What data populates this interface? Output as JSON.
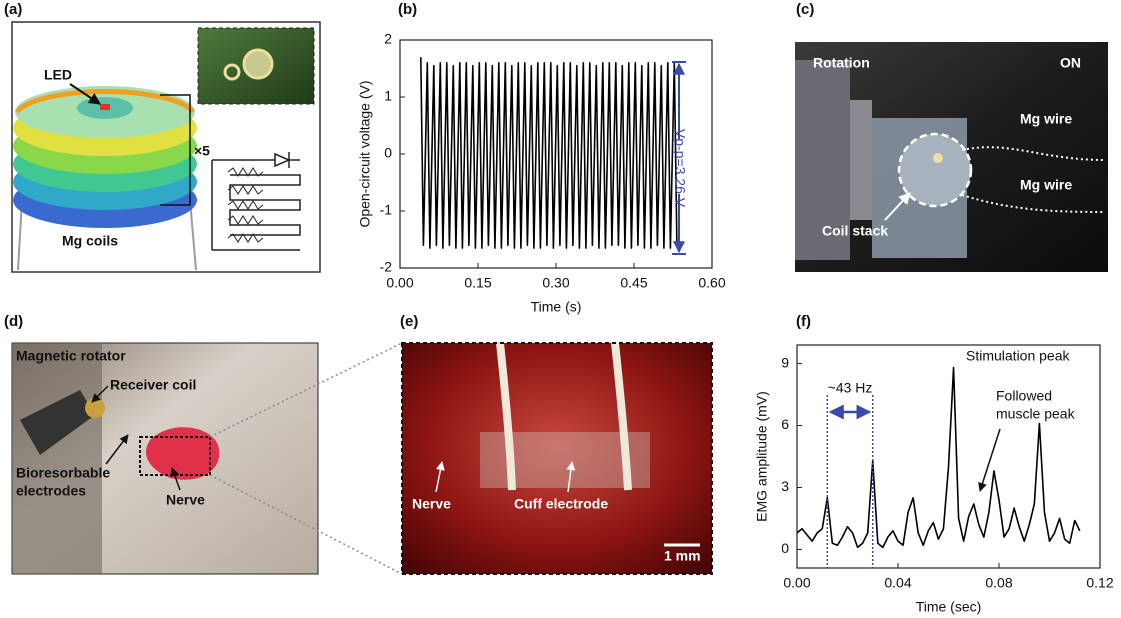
{
  "panels": {
    "labels": [
      "(a)",
      "(b)",
      "(c)",
      "(d)",
      "(e)",
      "(f)"
    ],
    "a": {
      "texts": [
        "LED",
        "×5",
        "Mg coils"
      ]
    },
    "c": {
      "texts": [
        "Rotation",
        "ON",
        "Mg wire",
        "Mg wire",
        "Coil stack"
      ]
    },
    "d": {
      "texts": [
        "Magnetic rotator",
        "Receiver coil",
        "Bioresorbable",
        "electrodes",
        "Nerve"
      ]
    },
    "e": {
      "texts": [
        "Nerve",
        "Cuff electrode",
        "1 mm"
      ]
    }
  },
  "chart_data": [
    {
      "type": "line",
      "xlabel": "Time (s)",
      "ylabel": "Open-circuit voltage (V)",
      "color": "#000000",
      "annotation": "Vp-p=3.26 V",
      "annotation_color": "#3a4aa8",
      "xlim": [
        0,
        0.6
      ],
      "ylim": [
        -2,
        2
      ],
      "xticks": [
        {
          "value": 0,
          "label": "0.00"
        },
        {
          "value": 0.15,
          "label": "0.15"
        },
        {
          "value": 0.3,
          "label": "0.30"
        },
        {
          "value": 0.45,
          "label": "0.45"
        },
        {
          "value": 0.6,
          "label": "0.60"
        }
      ],
      "yticks": [
        -2,
        -1,
        0,
        1,
        2
      ],
      "x": [
        0.04,
        0.045,
        0.0525,
        0.0575,
        0.065,
        0.07,
        0.0775,
        0.0825,
        0.09,
        0.095,
        0.1025,
        0.1075,
        0.115,
        0.12,
        0.1275,
        0.1325,
        0.14,
        0.145,
        0.1525,
        0.1575,
        0.165,
        0.17,
        0.1775,
        0.1825,
        0.19,
        0.195,
        0.2025,
        0.2075,
        0.215,
        0.22,
        0.2275,
        0.2325,
        0.24,
        0.245,
        0.2525,
        0.2575,
        0.265,
        0.27,
        0.2775,
        0.2825,
        0.29,
        0.295,
        0.3025,
        0.3075,
        0.315,
        0.32,
        0.3275,
        0.3325,
        0.34,
        0.345,
        0.3525,
        0.3575,
        0.365,
        0.37,
        0.3775,
        0.3825,
        0.39,
        0.395,
        0.4025,
        0.4075,
        0.415,
        0.42,
        0.4275,
        0.4325,
        0.44,
        0.445,
        0.4525,
        0.4575,
        0.465,
        0.47,
        0.4775,
        0.4825,
        0.49,
        0.495,
        0.5025,
        0.5075,
        0.515,
        0.52,
        0.5275,
        0.5325
      ],
      "values": [
        1.7,
        -1.6,
        1.6,
        -1.65,
        1.55,
        -1.6,
        1.6,
        -1.65,
        1.6,
        -1.6,
        1.55,
        -1.65,
        1.6,
        -1.65,
        1.6,
        -1.6,
        1.55,
        -1.65,
        1.6,
        -1.65,
        1.6,
        -1.6,
        1.55,
        -1.65,
        1.6,
        -1.65,
        1.6,
        -1.6,
        1.55,
        -1.65,
        1.6,
        -1.65,
        1.6,
        -1.6,
        1.55,
        -1.65,
        1.6,
        -1.65,
        1.6,
        -1.6,
        1.6,
        -1.65,
        1.55,
        -1.6,
        1.6,
        -1.65,
        1.6,
        -1.6,
        1.55,
        -1.65,
        1.6,
        -1.65,
        1.6,
        -1.6,
        1.55,
        -1.65,
        1.6,
        -1.65,
        1.6,
        -1.6,
        1.6,
        -1.6,
        1.55,
        -1.65,
        1.6,
        -1.65,
        1.6,
        -1.6,
        1.55,
        -1.65,
        1.6,
        -1.65,
        1.6,
        -1.6,
        1.55,
        -1.65,
        1.6,
        -1.65,
        1.6,
        -1.6
      ]
    },
    {
      "type": "line",
      "xlabel": "Time (sec)",
      "ylabel": "EMG amplitude (mV)",
      "color": "#000000",
      "annotations": [
        "~43 Hz",
        "Stimulation peak",
        "Followed",
        "muscle peak"
      ],
      "annotation_color": "#3a4aa8",
      "xlim": [
        0,
        0.12
      ],
      "ylim": [
        -0.9,
        9.9
      ],
      "xticks": [
        {
          "value": 0,
          "label": "0.00"
        },
        {
          "value": 0.04,
          "label": "0.04"
        },
        {
          "value": 0.08,
          "label": "0.08"
        },
        {
          "value": 0.12,
          "label": "0.12"
        }
      ],
      "yticks": [
        0,
        3,
        6,
        9
      ],
      "x": [
        0,
        0.002,
        0.004,
        0.006,
        0.008,
        0.01,
        0.012,
        0.014,
        0.016,
        0.018,
        0.02,
        0.022,
        0.024,
        0.026,
        0.028,
        0.03,
        0.032,
        0.034,
        0.036,
        0.038,
        0.04,
        0.042,
        0.044,
        0.046,
        0.048,
        0.05,
        0.052,
        0.054,
        0.056,
        0.058,
        0.06,
        0.062,
        0.064,
        0.066,
        0.068,
        0.07,
        0.072,
        0.074,
        0.076,
        0.078,
        0.08,
        0.082,
        0.084,
        0.086,
        0.088,
        0.09,
        0.092,
        0.094,
        0.096,
        0.098,
        0.1,
        0.102,
        0.104,
        0.106,
        0.108,
        0.11,
        0.112
      ],
      "values": [
        0.8,
        1.0,
        0.7,
        0.4,
        0.8,
        1.0,
        2.5,
        0.3,
        0.2,
        0.6,
        1.1,
        0.8,
        0.1,
        0.3,
        0.8,
        4.3,
        0.3,
        0.1,
        0.6,
        0.9,
        0.4,
        0.2,
        1.8,
        2.5,
        0.8,
        0.2,
        0.9,
        1.3,
        0.5,
        1.0,
        4.0,
        8.8,
        1.5,
        0.4,
        1.6,
        2.2,
        1.2,
        0.6,
        1.8,
        3.8,
        2.4,
        0.6,
        1.0,
        2.0,
        1.1,
        0.4,
        1.2,
        2.2,
        6.1,
        1.8,
        0.4,
        0.8,
        1.5,
        0.5,
        0.3,
        1.4,
        0.9
      ]
    }
  ]
}
